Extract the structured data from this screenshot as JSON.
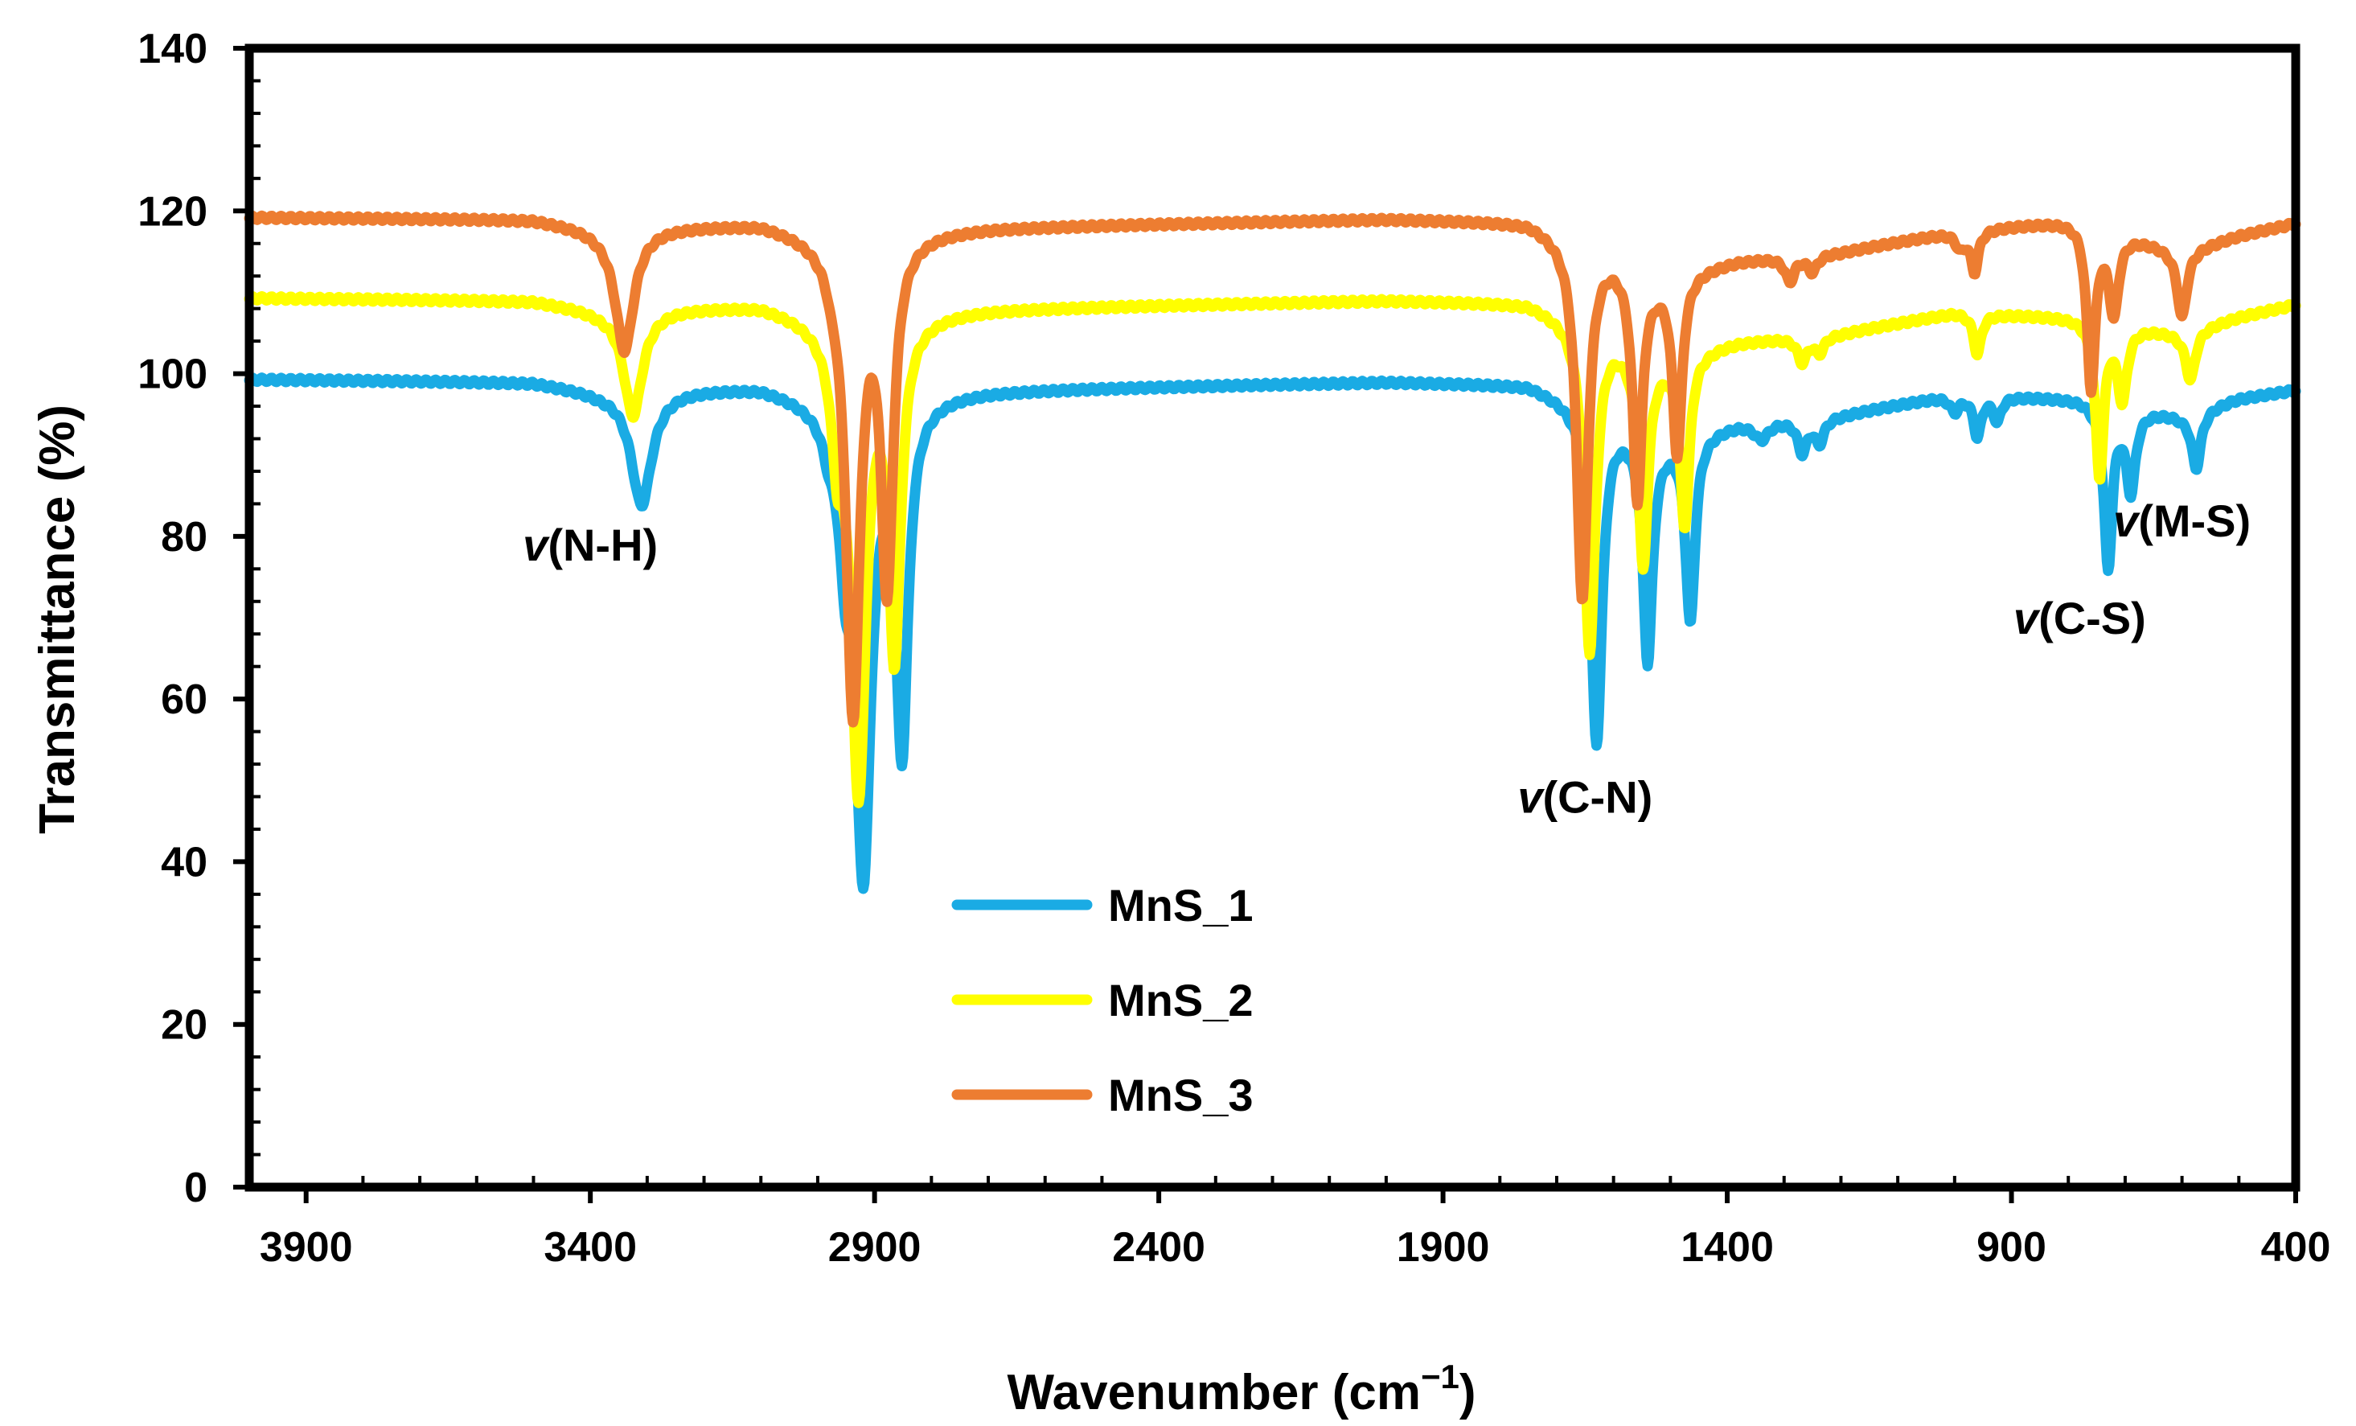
{
  "chart_data": {
    "type": "line",
    "xlabel": "Wavenumber (cm",
    "xlabel_sup": "−1",
    "xlabel_close": ")",
    "ylabel": "Transmittance (%)",
    "xlim": [
      4000,
      400
    ],
    "ylim": [
      0,
      140
    ],
    "x_ticks": [
      "3900",
      "3400",
      "2900",
      "2400",
      "1900",
      "1400",
      "900",
      "400"
    ],
    "x_tick_values": [
      3900,
      3400,
      2900,
      2400,
      1900,
      1400,
      900,
      400
    ],
    "y_ticks": [
      "0",
      "20",
      "40",
      "60",
      "80",
      "100",
      "120",
      "140"
    ],
    "y_tick_values": [
      0,
      20,
      40,
      60,
      80,
      100,
      120,
      140
    ],
    "series": [
      {
        "name": "MnS_1",
        "color": "#1AABE4",
        "baseline": [
          [
            4000,
            99.3
          ],
          [
            3500,
            99
          ],
          [
            3380,
            97.8
          ],
          [
            3240,
            98.2
          ],
          [
            3100,
            98.6
          ],
          [
            2990,
            97
          ],
          [
            2700,
            98
          ],
          [
            2000,
            99
          ],
          [
            1750,
            98.7
          ],
          [
            1700,
            97.5
          ],
          [
            1600,
            95
          ],
          [
            1530,
            92
          ],
          [
            1380,
            94
          ],
          [
            1200,
            95
          ],
          [
            1000,
            97.5
          ],
          [
            780,
            97
          ],
          [
            600,
            95
          ],
          [
            500,
            97
          ],
          [
            400,
            98
          ]
        ],
        "peaks": [
          {
            "x": 3310,
            "depth": 14,
            "w": 22
          },
          {
            "x": 2980,
            "depth": 3,
            "w": 12
          },
          {
            "x": 2952,
            "depth": 13,
            "w": 13
          },
          {
            "x": 2920,
            "depth": 57,
            "w": 17
          },
          {
            "x": 2852,
            "depth": 42,
            "w": 13
          },
          {
            "x": 1630,
            "depth": 41,
            "w": 12
          },
          {
            "x": 1540,
            "depth": 27,
            "w": 10
          },
          {
            "x": 1465,
            "depth": 23,
            "w": 10
          },
          {
            "x": 1340,
            "depth": 2,
            "w": 15
          },
          {
            "x": 1268,
            "depth": 4,
            "w": 10
          },
          {
            "x": 1238,
            "depth": 3,
            "w": 10
          },
          {
            "x": 1000,
            "depth": 2,
            "w": 10
          },
          {
            "x": 960,
            "depth": 5,
            "w": 8
          },
          {
            "x": 925,
            "depth": 3,
            "w": 8
          },
          {
            "x": 730,
            "depth": 20,
            "w": 9
          },
          {
            "x": 690,
            "depth": 10,
            "w": 10
          },
          {
            "x": 575,
            "depth": 7,
            "w": 10
          }
        ]
      },
      {
        "name": "MnS_2",
        "color": "#FFFF00",
        "baseline": [
          [
            4000,
            109.3
          ],
          [
            3500,
            109
          ],
          [
            3380,
            107.8
          ],
          [
            3240,
            108.2
          ],
          [
            3100,
            108.6
          ],
          [
            2990,
            107
          ],
          [
            2700,
            108
          ],
          [
            2000,
            109
          ],
          [
            1750,
            108.7
          ],
          [
            1700,
            107.5
          ],
          [
            1600,
            105
          ],
          [
            1530,
            102
          ],
          [
            1380,
            104
          ],
          [
            1200,
            105
          ],
          [
            1000,
            107.5
          ],
          [
            780,
            107
          ],
          [
            600,
            105
          ],
          [
            500,
            107
          ],
          [
            400,
            108.5
          ]
        ],
        "peaks": [
          {
            "x": 3325,
            "depth": 13,
            "w": 20
          },
          {
            "x": 2965,
            "depth": 13,
            "w": 13
          },
          {
            "x": 2928,
            "depth": 57,
            "w": 16
          },
          {
            "x": 2865,
            "depth": 40,
            "w": 13
          },
          {
            "x": 1642,
            "depth": 40,
            "w": 12
          },
          {
            "x": 1548,
            "depth": 26,
            "w": 10
          },
          {
            "x": 1475,
            "depth": 21,
            "w": 10
          },
          {
            "x": 1268,
            "depth": 3,
            "w": 10
          },
          {
            "x": 1238,
            "depth": 2,
            "w": 10
          },
          {
            "x": 960,
            "depth": 5,
            "w": 8
          },
          {
            "x": 745,
            "depth": 19,
            "w": 9
          },
          {
            "x": 705,
            "depth": 9,
            "w": 10
          },
          {
            "x": 585,
            "depth": 6,
            "w": 10
          }
        ]
      },
      {
        "name": "MnS_3",
        "color": "#ED7D31",
        "baseline": [
          [
            4000,
            119.2
          ],
          [
            3500,
            119
          ],
          [
            3380,
            117.8
          ],
          [
            3240,
            118.2
          ],
          [
            3100,
            118.6
          ],
          [
            2990,
            117
          ],
          [
            2700,
            118
          ],
          [
            2000,
            119
          ],
          [
            1750,
            118.7
          ],
          [
            1700,
            117.5
          ],
          [
            1600,
            115
          ],
          [
            1530,
            112
          ],
          [
            1380,
            114
          ],
          [
            1200,
            115
          ],
          [
            1000,
            117.5
          ],
          [
            780,
            119
          ],
          [
            600,
            115
          ],
          [
            500,
            117
          ],
          [
            400,
            118.5
          ]
        ],
        "peaks": [
          {
            "x": 3340,
            "depth": 15,
            "w": 20
          },
          {
            "x": 2975,
            "depth": 2,
            "w": 10
          },
          {
            "x": 2938,
            "depth": 58,
            "w": 15
          },
          {
            "x": 2878,
            "depth": 42,
            "w": 13
          },
          {
            "x": 1655,
            "depth": 44,
            "w": 12
          },
          {
            "x": 1558,
            "depth": 28,
            "w": 10
          },
          {
            "x": 1488,
            "depth": 22,
            "w": 10
          },
          {
            "x": 1290,
            "depth": 3,
            "w": 10
          },
          {
            "x": 1250,
            "depth": 2,
            "w": 10
          },
          {
            "x": 990,
            "depth": 2,
            "w": 10
          },
          {
            "x": 965,
            "depth": 5,
            "w": 8
          },
          {
            "x": 760,
            "depth": 20,
            "w": 9
          },
          {
            "x": 720,
            "depth": 10,
            "w": 10
          },
          {
            "x": 600,
            "depth": 8,
            "w": 10
          }
        ]
      }
    ],
    "annotations": [
      {
        "nu": "v",
        "text": "(N-H)",
        "x": 3400,
        "y": 77
      },
      {
        "nu": "v",
        "text": "(C-N)",
        "x": 1650,
        "y": 46
      },
      {
        "nu": "v",
        "text": "(C-S)",
        "x": 780,
        "y": 68
      },
      {
        "nu": "v",
        "text": "(M-S)",
        "x": 600,
        "y": 80
      }
    ],
    "legend": {
      "placement": "bottom-center",
      "labels": [
        "MnS_1",
        "MnS_2",
        "MnS_3"
      ]
    },
    "grid": false
  }
}
